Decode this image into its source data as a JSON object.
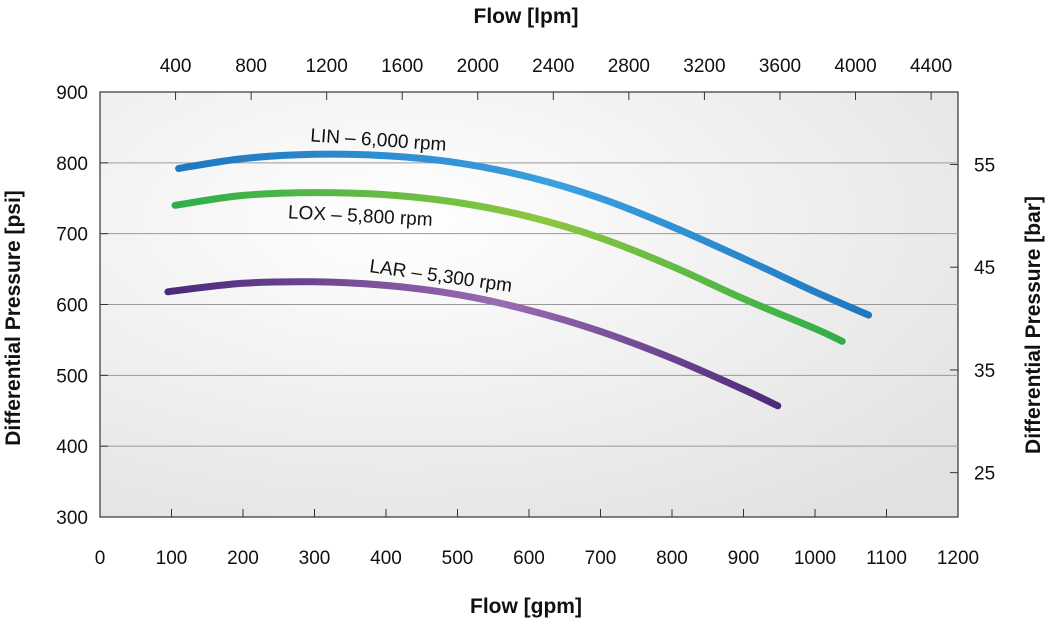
{
  "chart_data": {
    "type": "line",
    "top_axis": {
      "label": "Flow [lpm]",
      "ticks": [
        400,
        800,
        1200,
        1600,
        2000,
        2400,
        2800,
        3200,
        3600,
        4000,
        4400
      ],
      "tick_labels": [
        "400",
        "800",
        "1200",
        "1600",
        "2000",
        "2400",
        "2800",
        "3200",
        "3600",
        "4000",
        "4400"
      ]
    },
    "bottom_axis": {
      "label": "Flow [gpm]",
      "range": [
        0,
        1200
      ],
      "ticks": [
        0,
        100,
        200,
        300,
        400,
        500,
        600,
        700,
        800,
        900,
        1000,
        1100,
        1200
      ],
      "tick_labels": [
        "0",
        "100",
        "200",
        "300",
        "400",
        "500",
        "600",
        "700",
        "800",
        "900",
        "1000",
        "1100",
        "1200"
      ]
    },
    "left_axis": {
      "label": "Differential Pressure [psi]",
      "range": [
        300,
        900
      ],
      "ticks": [
        300,
        400,
        500,
        600,
        700,
        800,
        900
      ],
      "tick_labels": [
        "300",
        "400",
        "500",
        "600",
        "700",
        "800",
        "900"
      ]
    },
    "right_axis": {
      "label": "Differential Pressure [bar]",
      "ticks": [
        25,
        35,
        45,
        55
      ],
      "tick_labels": [
        "25",
        "35",
        "45",
        "55"
      ]
    },
    "grid": "horizontal",
    "series": [
      {
        "name": "LIN – 6,000 rpm",
        "color_start": "#1f78c0",
        "color_end": "#3aa0df",
        "x": [
          110,
          200,
          300,
          400,
          500,
          600,
          700,
          800,
          900,
          1000,
          1075
        ],
        "y": [
          792,
          806,
          812,
          810,
          800,
          780,
          750,
          710,
          665,
          618,
          585
        ]
      },
      {
        "name": "LOX – 5,800 rpm",
        "color_start": "#2fae4a",
        "color_end": "#8dc63f",
        "x": [
          105,
          200,
          300,
          400,
          500,
          600,
          700,
          800,
          900,
          1000,
          1038
        ],
        "y": [
          740,
          754,
          758,
          755,
          744,
          724,
          694,
          654,
          608,
          566,
          548
        ]
      },
      {
        "name": "LAR – 5,300 rpm",
        "color_start": "#4b2a7a",
        "color_end": "#9a6bb0",
        "x": [
          95,
          200,
          300,
          400,
          500,
          600,
          700,
          800,
          900,
          948
        ],
        "y": [
          618,
          630,
          632,
          627,
          614,
          592,
          562,
          524,
          480,
          457
        ]
      }
    ]
  }
}
